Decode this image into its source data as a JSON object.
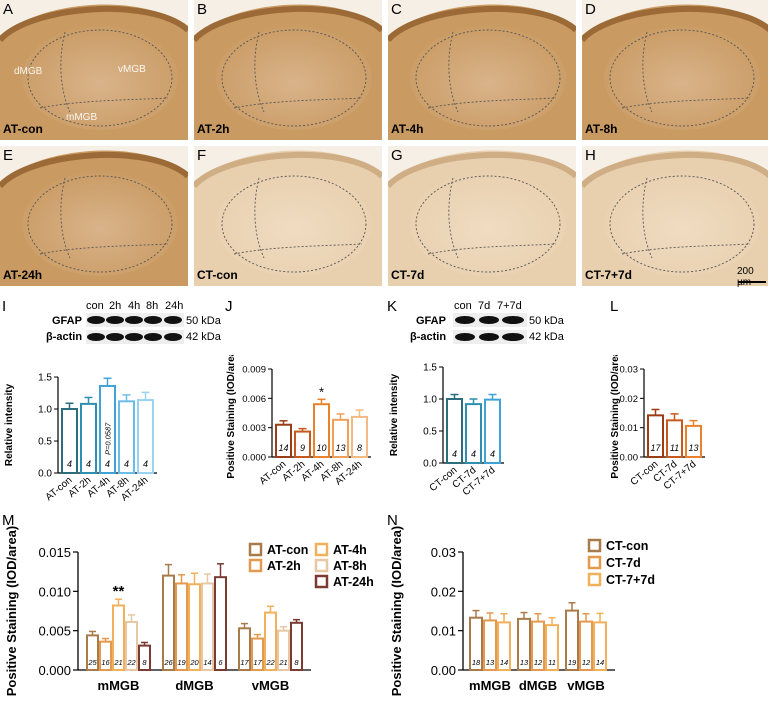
{
  "panels": [
    {
      "letter": "A",
      "condition": "AT-con",
      "regions": [
        "dMGB",
        "vMGB",
        "mMGB"
      ],
      "tone": "dark"
    },
    {
      "letter": "B",
      "condition": "AT-2h",
      "regions": [],
      "tone": "dark"
    },
    {
      "letter": "C",
      "condition": "AT-4h",
      "regions": [],
      "tone": "dark"
    },
    {
      "letter": "D",
      "condition": "AT-8h",
      "regions": [],
      "tone": "dark"
    },
    {
      "letter": "E",
      "condition": "AT-24h",
      "regions": [],
      "tone": "dark"
    },
    {
      "letter": "F",
      "condition": "CT-con",
      "regions": [],
      "tone": "light"
    },
    {
      "letter": "G",
      "condition": "CT-7d",
      "regions": [],
      "tone": "light"
    },
    {
      "letter": "H",
      "condition": "CT-7+7d",
      "regions": [],
      "tone": "light"
    }
  ],
  "scalebar": "200 µm",
  "panel_letters": {
    "I": "I",
    "J": "J",
    "K": "K",
    "L": "L",
    "M": "M",
    "N": "N"
  },
  "blot_I": {
    "lanes": [
      "con",
      "2h",
      "4h",
      "8h",
      "24h"
    ],
    "rows": [
      "GFAP",
      "β-actin"
    ],
    "kda": [
      "50 kDa",
      "42 kDa"
    ]
  },
  "blot_K": {
    "lanes": [
      "con",
      "7d",
      "7+7d"
    ],
    "rows": [
      "GFAP",
      "β-actin"
    ],
    "kda": [
      "50 kDa",
      "42 kDa"
    ]
  },
  "colors": {
    "AT-con": "#2b6e7e",
    "AT-2h": "#2f8fb0",
    "AT-4h": "#3fa3d6",
    "AT-8h": "#6cbde6",
    "AT-24h": "#9ad3ef",
    "J-AT-con": "#9a3c15",
    "J-AT-2h": "#c8591e",
    "J-AT-4h": "#e9822b",
    "J-AT-8h": "#efa15a",
    "J-AT-24h": "#f3bb83",
    "M-AT-con": "#a87b4a",
    "M-AT-2h": "#e39a4f",
    "M-AT-4h": "#f1b15a",
    "M-AT-8h": "#e7c8a4",
    "M-AT-24h": "#7a3b32",
    "N-CT-con": "#a87b4a",
    "N-CT-7d": "#e39a4f",
    "N-CT-7+7d": "#f1b15a"
  },
  "chart_data": [
    {
      "id": "I",
      "type": "bar",
      "categories": [
        "AT-con",
        "AT-2h",
        "AT-4h",
        "AT-8h",
        "AT-24h"
      ],
      "values": [
        1.0,
        1.08,
        1.36,
        1.12,
        1.14
      ],
      "errors": [
        0.09,
        0.1,
        0.12,
        0.1,
        0.12
      ],
      "n": [
        "4",
        "4",
        "4",
        "4",
        "4"
      ],
      "annotations": [
        "",
        "",
        "P=0.0587",
        "",
        ""
      ],
      "ylabel": "Relative intensity",
      "ylim": [
        0,
        1.5
      ],
      "yticks": [
        "0.0",
        "0.5",
        "1.0",
        "1.5"
      ]
    },
    {
      "id": "J",
      "type": "bar",
      "categories": [
        "AT-con",
        "AT-2h",
        "AT-4h",
        "AT-8h",
        "AT-24h"
      ],
      "values": [
        0.0033,
        0.0026,
        0.0054,
        0.0038,
        0.0041
      ],
      "errors": [
        0.0004,
        0.0003,
        0.0005,
        0.0006,
        0.0007
      ],
      "n": [
        "14",
        "9",
        "10",
        "13",
        "8"
      ],
      "stars": [
        "",
        "",
        "*",
        "",
        ""
      ],
      "ylabel": "Positive Staining (IOD/area)",
      "ylim": [
        0,
        0.009
      ],
      "yticks": [
        "0.000",
        "0.003",
        "0.006",
        "0.009"
      ]
    },
    {
      "id": "K",
      "type": "bar",
      "categories": [
        "CT-con",
        "CT-7d",
        "CT-7+7d"
      ],
      "values": [
        1.0,
        0.92,
        0.99
      ],
      "errors": [
        0.07,
        0.08,
        0.08
      ],
      "n": [
        "4",
        "4",
        "4"
      ],
      "ylabel": "Relative intensity",
      "ylim": [
        0,
        1.5
      ],
      "yticks": [
        "0.0",
        "0.5",
        "1.0",
        "1.5"
      ]
    },
    {
      "id": "L",
      "type": "bar",
      "categories": [
        "CT-con",
        "CT-7d",
        "CT-7+7d"
      ],
      "values": [
        0.0142,
        0.0125,
        0.0106
      ],
      "errors": [
        0.002,
        0.0022,
        0.0018
      ],
      "n": [
        "17",
        "11",
        "13"
      ],
      "ylabel": "Positive Staining (IOD/area)",
      "ylim": [
        0,
        0.03
      ],
      "yticks": [
        "0.00",
        "0.01",
        "0.02",
        "0.03"
      ]
    },
    {
      "id": "M",
      "type": "bar",
      "categories": [
        "mMGB",
        "dMGB",
        "vMGB"
      ],
      "series": [
        {
          "name": "AT-con",
          "values": [
            0.0044,
            0.012,
            0.0053
          ],
          "errors": [
            0.0005,
            0.0014,
            0.0006
          ],
          "n": [
            "25",
            "26",
            "17"
          ]
        },
        {
          "name": "AT-2h",
          "values": [
            0.0036,
            0.011,
            0.004
          ],
          "errors": [
            0.0004,
            0.0011,
            0.0005
          ],
          "n": [
            "16",
            "19",
            "17"
          ]
        },
        {
          "name": "AT-4h",
          "values": [
            0.0082,
            0.0109,
            0.0073
          ],
          "errors": [
            0.0008,
            0.0014,
            0.0008
          ],
          "n": [
            "21",
            "20",
            "22"
          ]
        },
        {
          "name": "AT-8h",
          "values": [
            0.0061,
            0.011,
            0.005
          ],
          "errors": [
            0.0009,
            0.0012,
            0.0005
          ],
          "n": [
            "22",
            "14",
            "21"
          ]
        },
        {
          "name": "AT-24h",
          "values": [
            0.0031,
            0.0118,
            0.006
          ],
          "errors": [
            0.0004,
            0.0017,
            0.0004
          ],
          "n": [
            "8",
            "6",
            "8"
          ]
        }
      ],
      "stars": [
        "**",
        "",
        ""
      ],
      "ylabel": "Positive Staining (IOD/area)",
      "ylim": [
        0,
        0.015
      ],
      "yticks": [
        "0.000",
        "0.005",
        "0.010",
        "0.015"
      ],
      "legend": "top-right"
    },
    {
      "id": "N",
      "type": "bar",
      "categories": [
        "mMGB",
        "dMGB",
        "vMGB"
      ],
      "series": [
        {
          "name": "CT-con",
          "values": [
            0.0133,
            0.013,
            0.0151
          ],
          "errors": [
            0.0018,
            0.0016,
            0.002
          ],
          "n": [
            "18",
            "13",
            "19"
          ]
        },
        {
          "name": "CT-7d",
          "values": [
            0.0126,
            0.0123,
            0.0123
          ],
          "errors": [
            0.0019,
            0.002,
            0.002
          ],
          "n": [
            "13",
            "12",
            "12"
          ]
        },
        {
          "name": "CT-7+7d",
          "values": [
            0.0121,
            0.0114,
            0.0121
          ],
          "errors": [
            0.0022,
            0.0019,
            0.0023
          ],
          "n": [
            "14",
            "11",
            "14"
          ]
        }
      ],
      "ylabel": "Positive Staining (IOD/area)",
      "ylim": [
        0,
        0.03
      ],
      "yticks": [
        "0.00",
        "0.01",
        "0.02",
        "0.03"
      ],
      "legend": "top-right"
    }
  ]
}
